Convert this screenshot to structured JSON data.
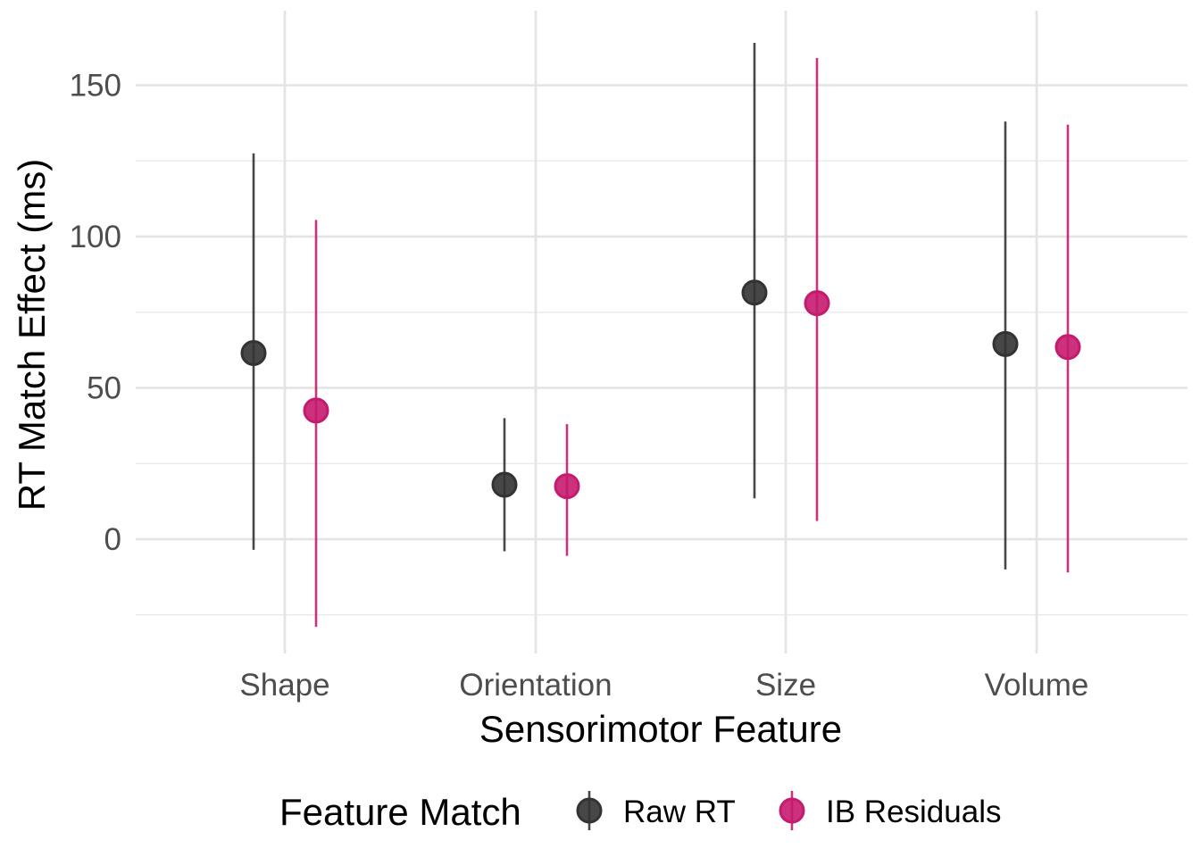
{
  "chart_data": {
    "type": "scatter",
    "subtype": "pointrange",
    "categories": [
      "Shape",
      "Orientation",
      "Size",
      "Volume"
    ],
    "xlabel": "Sensorimotor Feature",
    "ylabel": "RT Match Effect (ms)",
    "ylim": [
      -37,
      173
    ],
    "yticks": [
      0,
      50,
      100,
      150
    ],
    "grid": true,
    "legend": {
      "title": "Feature Match",
      "position": "bottom"
    },
    "series": [
      {
        "name": "Raw RT",
        "color": "#333333",
        "values": [
          61.5,
          18,
          81.5,
          64.5
        ],
        "lower": [
          -3.5,
          -4,
          13.5,
          -10
        ],
        "upper": [
          127.5,
          40,
          164,
          138
        ]
      },
      {
        "name": "IB Residuals",
        "color": "#c51b6e",
        "values": [
          42.5,
          17.5,
          78,
          63.5
        ],
        "lower": [
          -29,
          -5.5,
          6,
          -11
        ],
        "upper": [
          105.5,
          38,
          159,
          137
        ]
      }
    ]
  }
}
